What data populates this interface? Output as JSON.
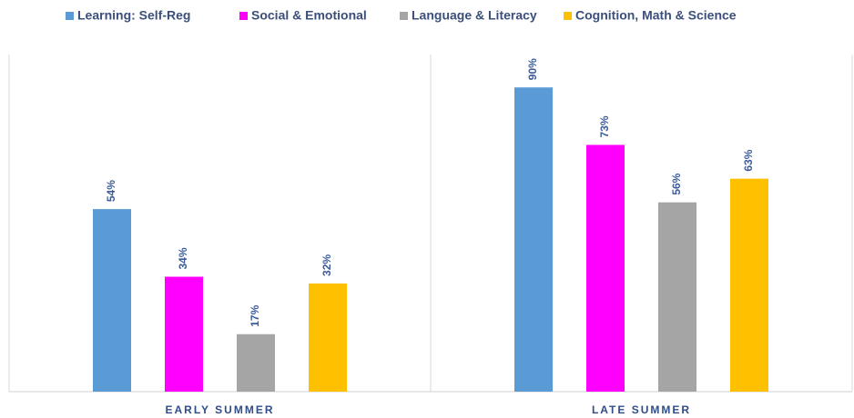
{
  "chart_data": {
    "type": "bar",
    "categories": [
      "EARLY SUMMER",
      "LATE SUMMER"
    ],
    "series": [
      {
        "name": "Learning: Self-Reg",
        "color": "#5b9bd5",
        "values": [
          54,
          90
        ],
        "value_labels": [
          "54%",
          "90%"
        ]
      },
      {
        "name": "Social & Emotional",
        "color": "#ff00ff",
        "values": [
          34,
          73
        ],
        "value_labels": [
          "34%",
          "73%"
        ]
      },
      {
        "name": "Language & Literacy",
        "color": "#a5a5a5",
        "values": [
          17,
          56
        ],
        "value_labels": [
          "17%",
          "56%"
        ]
      },
      {
        "name": "Cognition, Math & Science",
        "color": "#ffc000",
        "values": [
          32,
          63
        ],
        "value_labels": [
          "32%",
          "63%"
        ]
      }
    ],
    "ylim": [
      0,
      100
    ],
    "legend": "top"
  }
}
